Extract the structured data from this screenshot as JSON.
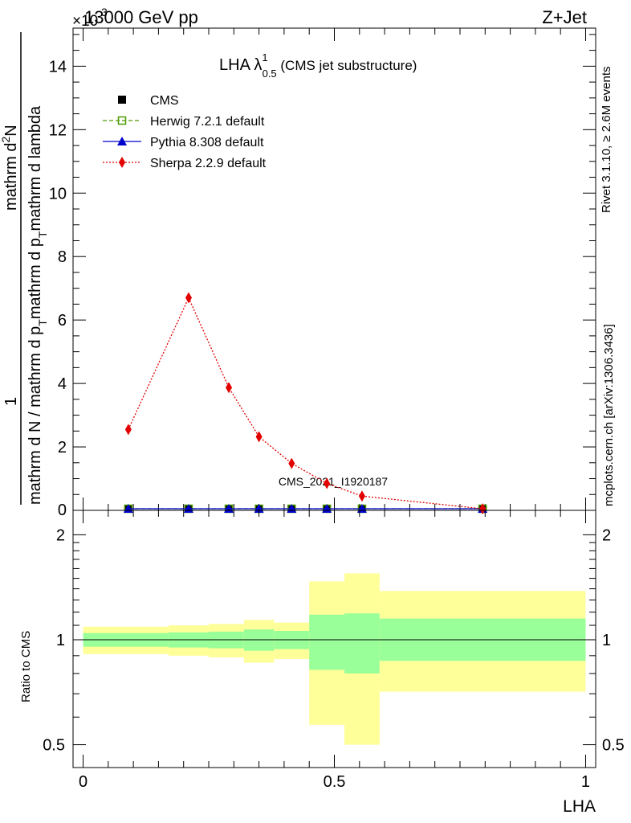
{
  "header": {
    "left": "13000 GeV pp",
    "right": "Z+Jet",
    "exponent_prefix": "×10",
    "exponent": "3"
  },
  "side": {
    "rivet": "Rivet 3.1.10, ≥ 2.6M events",
    "mcplots": "mcplots.cern.ch [arXiv:1306.3436]"
  },
  "watermark": "CMS_2021_I1920187",
  "main_title": {
    "base": "LHA λ",
    "sup": "1",
    "sub": "0.5",
    "rest": " (CMS jet substructure)"
  },
  "ylabel_main": {
    "numerator": "1",
    "lines": [
      "mathrm d N / mathrm d p",
      "T",
      "mathrm d p",
      "T",
      "mathrm d lambda"
    ],
    "right_top": "mathrm d",
    "right_sup": "2",
    "right_tail": "N"
  },
  "ylabel_ratio": "Ratio to CMS",
  "xlabel": "LHA",
  "legend": [
    {
      "label": "CMS",
      "color": "#000000",
      "marker": "square-filled",
      "line": "none"
    },
    {
      "label": "Herwig 7.2.1 default",
      "color": "#4d9a00",
      "marker": "square-open",
      "line": "dashed"
    },
    {
      "label": "Pythia 8.308 default",
      "color": "#0000cc",
      "marker": "triangle",
      "line": "solid"
    },
    {
      "label": "Sherpa 2.2.9 default",
      "color": "#e30000",
      "marker": "diamond",
      "line": "dotted"
    }
  ],
  "chart_data": {
    "type": "line",
    "xlabel": "LHA",
    "ylabel": "1 / N dN/dλ (×10³)",
    "xlim": [
      -0.02,
      1.02
    ],
    "ylim": [
      0,
      15.2
    ],
    "y_scale_factor": "×10^3",
    "y_ticks": [
      "2",
      "4",
      "6",
      "8",
      "10",
      "12",
      "14"
    ],
    "x_ticks": [
      "0",
      "0.5",
      "1"
    ],
    "series": [
      {
        "name": "CMS",
        "x": [
          0.09,
          0.21,
          0.29,
          0.35,
          0.415,
          0.485,
          0.555,
          0.795
        ],
        "y": [
          0.02,
          0.02,
          0.02,
          0.02,
          0.02,
          0.02,
          0.02,
          0.02
        ]
      },
      {
        "name": "Herwig 7.2.1 default",
        "x": [
          0.09,
          0.21,
          0.29,
          0.35,
          0.415,
          0.485,
          0.555,
          0.795
        ],
        "y": [
          0.02,
          0.02,
          0.02,
          0.02,
          0.02,
          0.02,
          0.02,
          0.02
        ]
      },
      {
        "name": "Pythia 8.308 default",
        "x": [
          0.09,
          0.21,
          0.29,
          0.35,
          0.415,
          0.485,
          0.555,
          0.795
        ],
        "y": [
          0.02,
          0.02,
          0.02,
          0.02,
          0.02,
          0.02,
          0.02,
          0.02
        ]
      },
      {
        "name": "Sherpa 2.2.9 default",
        "x": [
          0.09,
          0.21,
          0.29,
          0.35,
          0.415,
          0.485,
          0.555,
          0.795
        ],
        "y": [
          2.55,
          6.7,
          3.87,
          2.32,
          1.48,
          0.85,
          0.45,
          0.03
        ]
      }
    ],
    "ratio": {
      "ylabel": "Ratio to CMS",
      "ylog": true,
      "ylim": [
        0.43,
        2.35
      ],
      "y_ticks": [
        "0.5",
        "1",
        "2"
      ],
      "reference": 1,
      "bins": [
        {
          "lo": 0.0,
          "hi": 0.17,
          "inner": [
            0.955,
            1.045
          ],
          "outer": [
            0.91,
            1.09
          ]
        },
        {
          "lo": 0.17,
          "hi": 0.25,
          "inner": [
            0.95,
            1.05
          ],
          "outer": [
            0.9,
            1.1
          ]
        },
        {
          "lo": 0.25,
          "hi": 0.32,
          "inner": [
            0.945,
            1.055
          ],
          "outer": [
            0.89,
            1.11
          ]
        },
        {
          "lo": 0.32,
          "hi": 0.38,
          "inner": [
            0.93,
            1.07
          ],
          "outer": [
            0.86,
            1.14
          ]
        },
        {
          "lo": 0.38,
          "hi": 0.45,
          "inner": [
            0.94,
            1.06
          ],
          "outer": [
            0.88,
            1.12
          ]
        },
        {
          "lo": 0.45,
          "hi": 0.52,
          "inner": [
            0.82,
            1.18
          ],
          "outer": [
            0.57,
            1.47
          ]
        },
        {
          "lo": 0.52,
          "hi": 0.59,
          "inner": [
            0.8,
            1.19
          ],
          "outer": [
            0.5,
            1.55
          ]
        },
        {
          "lo": 0.59,
          "hi": 1.0,
          "inner": [
            0.87,
            1.15
          ],
          "outer": [
            0.71,
            1.38
          ]
        }
      ]
    },
    "colors": {
      "inner_band": "#99ff99",
      "outer_band": "#ffff99"
    }
  }
}
